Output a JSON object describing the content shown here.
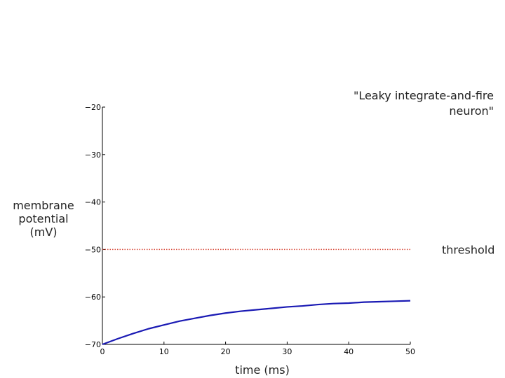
{
  "chart_data": {
    "type": "line",
    "title_lines": [
      "\"Leaky integrate-and-fire",
      "neuron\""
    ],
    "xlabel": "time (ms)",
    "ylabel_lines": [
      "membrane",
      "potential",
      "(mV)"
    ],
    "xlim": [
      0,
      50
    ],
    "ylim": [
      -70,
      -20
    ],
    "x_ticks": [
      0,
      10,
      20,
      30,
      40,
      50
    ],
    "y_ticks": [
      -70,
      -60,
      -50,
      -40,
      -30,
      -20
    ],
    "x_tick_labels": [
      "0",
      "10",
      "20",
      "30",
      "40",
      "50"
    ],
    "y_tick_labels": [
      "−70",
      "−60",
      "−50",
      "−40",
      "−30",
      "−20"
    ],
    "grid": false,
    "series": [
      {
        "color": "#1a1ab4",
        "x": [
          0,
          2.5,
          5,
          7.5,
          10,
          12.5,
          15,
          17.5,
          20,
          22.5,
          25,
          27.5,
          30,
          32.5,
          35,
          37.5,
          40,
          42.5,
          45,
          47.5,
          50
        ],
        "y": [
          -70.0,
          -68.8,
          -67.7,
          -66.7,
          -65.9,
          -65.1,
          -64.5,
          -63.9,
          -63.4,
          -63.0,
          -62.7,
          -62.4,
          -62.1,
          -61.9,
          -61.6,
          -61.4,
          -61.3,
          -61.1,
          -61.0,
          -60.9,
          -60.8
        ]
      }
    ],
    "threshold": {
      "value": -50,
      "label": "threshold",
      "color": "#d84a3a"
    }
  }
}
